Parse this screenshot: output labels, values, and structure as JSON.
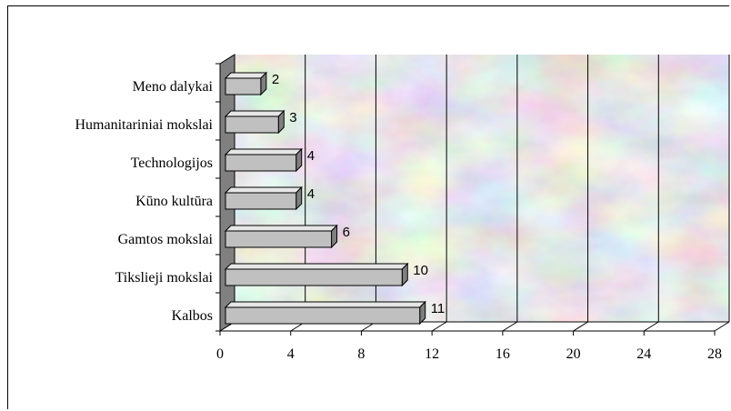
{
  "chart_data": {
    "type": "bar",
    "orientation": "horizontal",
    "style": "3d",
    "categories": [
      "Kalbos",
      "Tikslieji mokslai",
      "Gamtos mokslai",
      "Kūno kultūra",
      "Technologijos",
      "Humanitariniai mokslai",
      "Meno dalykai"
    ],
    "values": [
      11,
      10,
      6,
      4,
      4,
      3,
      2
    ],
    "data_labels": [
      "11",
      "10",
      "6",
      "4",
      "4",
      "3",
      "2"
    ],
    "xlim": [
      0,
      28
    ],
    "xticks": [
      0,
      4,
      8,
      12,
      16,
      20,
      24,
      28
    ],
    "xtick_labels": [
      "0",
      "4",
      "8",
      "12",
      "16",
      "20",
      "24",
      "28"
    ],
    "title": "",
    "xlabel": "",
    "ylabel": "",
    "grid": "vertical",
    "legend": "none",
    "colors": {
      "bar_front": "#c0c0c0",
      "bar_top": "#e6e6e6",
      "bar_side": "#7f7f7f",
      "wall_side": "#808080",
      "wall_texture": "marble"
    }
  }
}
